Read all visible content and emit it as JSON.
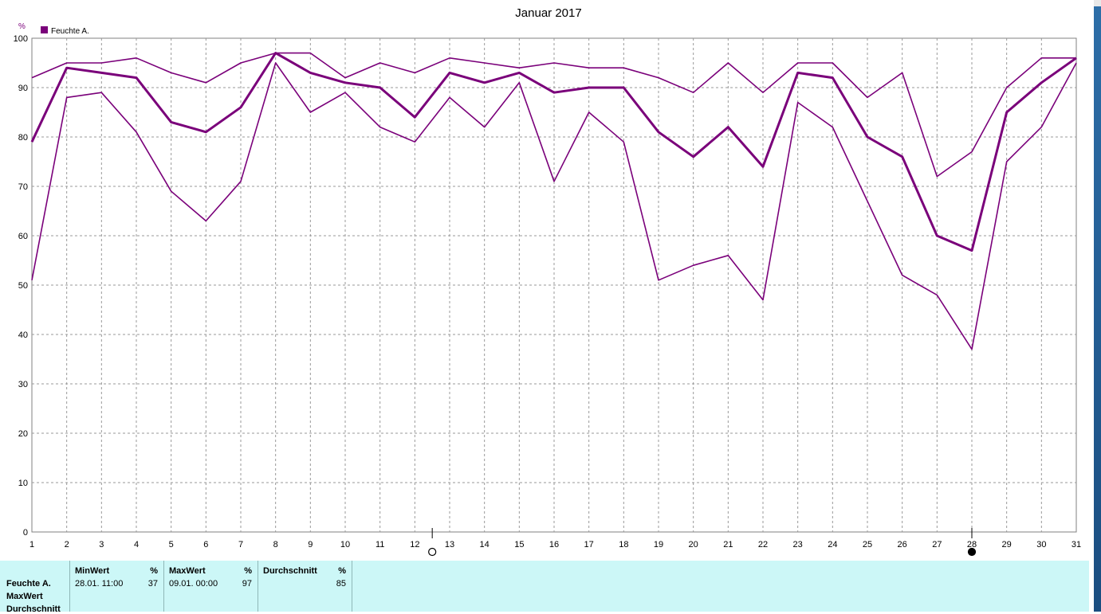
{
  "chart_data": {
    "type": "line",
    "title": "Januar 2017",
    "unit": "%",
    "legend": "Feuchte A.",
    "legend_position": "top-left",
    "grid": true,
    "line_color": "#7a007a",
    "x": [
      1,
      2,
      3,
      4,
      5,
      6,
      7,
      8,
      9,
      10,
      11,
      12,
      13,
      14,
      15,
      16,
      17,
      18,
      19,
      20,
      21,
      22,
      23,
      24,
      25,
      26,
      27,
      28,
      29,
      30,
      31
    ],
    "xlim": [
      1,
      31
    ],
    "ylim": [
      0,
      100
    ],
    "yticks": [
      0,
      10,
      20,
      30,
      40,
      50,
      60,
      70,
      80,
      90,
      100
    ],
    "series": [
      {
        "role": "max",
        "values": [
          92,
          95,
          95,
          96,
          93,
          91,
          95,
          97,
          97,
          92,
          95,
          93,
          96,
          95,
          94,
          95,
          94,
          94,
          92,
          89,
          95,
          89,
          95,
          95,
          88,
          93,
          72,
          77,
          90,
          96,
          96
        ]
      },
      {
        "role": "average",
        "values": [
          79,
          94,
          93,
          92,
          83,
          81,
          86,
          97,
          93,
          91,
          90,
          84,
          93,
          91,
          93,
          89,
          90,
          90,
          81,
          76,
          82,
          74,
          93,
          92,
          80,
          76,
          60,
          57,
          85,
          91,
          96
        ]
      },
      {
        "role": "min",
        "values": [
          51,
          88,
          89,
          81,
          69,
          63,
          71,
          95,
          85,
          89,
          82,
          79,
          88,
          82,
          91,
          71,
          85,
          79,
          51,
          54,
          56,
          47,
          87,
          82,
          67,
          52,
          48,
          37,
          75,
          82,
          95
        ]
      }
    ],
    "markers": [
      {
        "type": "open-circle",
        "x": 12.5
      },
      {
        "type": "filled-circle",
        "x": 28
      }
    ]
  },
  "stats": {
    "row_labels": [
      "Feuchte A.",
      "MaxWert",
      "Durchschnitt"
    ],
    "columns": [
      {
        "header": "MinWert",
        "unit": "%",
        "date": "28.01.  11:00",
        "value": "37"
      },
      {
        "header": "MaxWert",
        "unit": "%",
        "date": "09.01.  00:00",
        "value": "97"
      },
      {
        "header": "Durchschnitt",
        "unit": "%",
        "date": "",
        "value": "85"
      }
    ]
  }
}
